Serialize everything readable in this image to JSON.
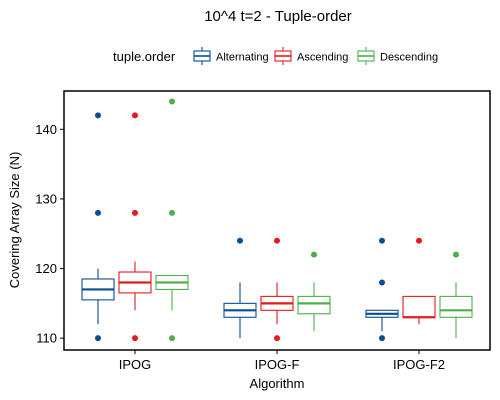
{
  "chart_data": {
    "type": "boxplot",
    "title": "10^4 t=2 - Tuple-order",
    "xlabel": "Algorithm",
    "ylabel": "Covering Array Size (N)",
    "ylim": [
      108.3,
      145.5
    ],
    "yticks": [
      110,
      120,
      130,
      140
    ],
    "grid": false,
    "legend": {
      "title": "tuple.order",
      "placement": "top"
    },
    "categories": [
      "IPOG",
      "IPOG-F",
      "IPOG-F2"
    ],
    "series": [
      {
        "name": "Alternating",
        "color": "#0A4C96",
        "boxes": [
          {
            "min": 112,
            "q1": 115.5,
            "median": 117,
            "q3": 118.5,
            "max": 120,
            "outliers": [
              142,
              128,
              110
            ]
          },
          {
            "min": 110,
            "q1": 113,
            "median": 114,
            "q3": 115,
            "max": 118,
            "outliers": [
              124
            ]
          },
          {
            "min": 111,
            "q1": 113,
            "median": 113.5,
            "q3": 114,
            "max": 114,
            "outliers": [
              124,
              118,
              110
            ]
          }
        ]
      },
      {
        "name": "Ascending",
        "color": "#E41A1C",
        "boxes": [
          {
            "min": 114,
            "q1": 116.5,
            "median": 118,
            "q3": 119.5,
            "max": 121,
            "outliers": [
              142,
              128,
              110
            ]
          },
          {
            "min": 112,
            "q1": 114,
            "median": 115,
            "q3": 116,
            "max": 118,
            "outliers": [
              124,
              110
            ]
          },
          {
            "min": 112,
            "q1": 113,
            "median": 113,
            "q3": 116,
            "max": 116,
            "outliers": [
              124
            ]
          }
        ]
      },
      {
        "name": "Descending",
        "color": "#4DAF4A",
        "boxes": [
          {
            "min": 114,
            "q1": 117,
            "median": 118,
            "q3": 119,
            "max": 119,
            "outliers": [
              144,
              128,
              110
            ]
          },
          {
            "min": 111,
            "q1": 113.5,
            "median": 115,
            "q3": 116,
            "max": 118,
            "outliers": [
              122
            ]
          },
          {
            "min": 110,
            "q1": 113,
            "median": 114,
            "q3": 116,
            "max": 118,
            "outliers": [
              122
            ]
          }
        ]
      }
    ]
  }
}
